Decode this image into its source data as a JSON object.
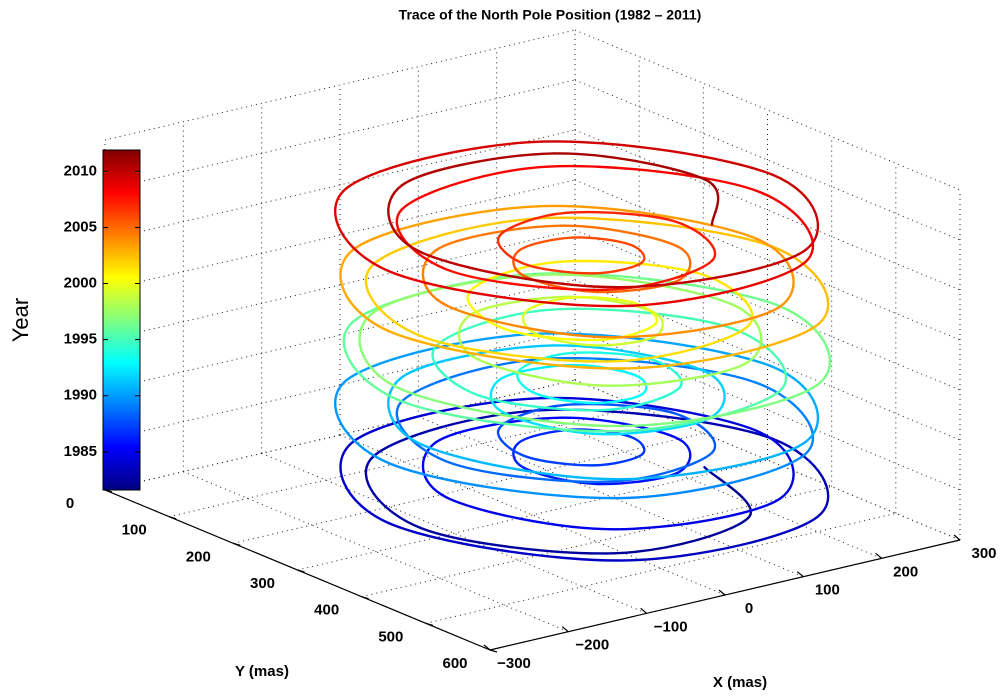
{
  "chart_data": {
    "type": "line3d",
    "title": "Trace of the North Pole Position (1982 – 2011)",
    "xlabel": "X (mas)",
    "ylabel": "Y (mas)",
    "colorbar": {
      "label": "Year",
      "clim": [
        1981.6,
        2011.9
      ],
      "ticks": [
        1985,
        1990,
        1995,
        2000,
        2005,
        2010
      ]
    },
    "colormap": "jet",
    "grid": true,
    "xlim": [
      -300,
      300
    ],
    "xticks": [
      {
        "value": -300,
        "label": "−300"
      },
      {
        "value": -200,
        "label": "−200"
      },
      {
        "value": -100,
        "label": "−100"
      },
      0,
      100,
      200,
      300
    ],
    "ylim": [
      0,
      600
    ],
    "yticks": [
      0,
      100,
      200,
      300,
      400,
      500,
      600
    ],
    "zlim": [
      1980,
      2015
    ],
    "zticks": [
      1980,
      1985,
      1990,
      1995,
      2000,
      2005,
      2010,
      2015
    ],
    "x": [
      195,
      127,
      -56,
      -168,
      -71,
      157,
      283,
      164,
      -85,
      -208,
      -82,
      157,
      262,
      144,
      -56,
      -134,
      -38,
      108,
      159,
      91,
      -4,
      -36,
      6,
      71,
      100,
      71,
      6,
      -36,
      -4,
      91,
      159,
      108,
      -38,
      -134,
      -56,
      144,
      262,
      157,
      -82,
      -208,
      -85,
      164,
      283,
      157,
      -71,
      -168,
      -56,
      127,
      195,
      108,
      -20,
      -62,
      -4,
      78,
      107,
      71,
      10,
      -22,
      6,
      78,
      128,
      91,
      -20,
      -96,
      -38,
      127,
      231,
      144,
      -71,
      -194,
      -82,
      164,
      290,
      164,
      -82,
      -194,
      -71,
      144,
      231,
      127,
      -38,
      -96,
      -20,
      91,
      128,
      78,
      6,
      -22,
      10,
      71,
      107,
      78,
      -4,
      -62,
      -20,
      108,
      195,
      127,
      -56,
      -168,
      -71,
      157,
      283,
      164,
      -85,
      -208,
      -82,
      157,
      262,
      144,
      -56,
      -134,
      -38,
      108,
      159,
      91,
      -4,
      -36,
      6,
      71,
      100,
      71,
      6,
      -36,
      -4,
      91,
      159,
      108,
      -38,
      -134,
      -56,
      144,
      262,
      157,
      -82,
      -208,
      -85,
      164,
      283,
      157,
      -71,
      -168,
      -56,
      127,
      195,
      108
    ],
    "y": [
      330,
      481,
      495,
      330,
      138,
      127,
      330,
      545,
      547,
      330,
      120,
      127,
      330,
      510,
      495,
      330,
      196,
      212,
      330,
      418,
      406,
      330,
      272,
      276,
      330,
      384,
      388,
      330,
      254,
      242,
      330,
      448,
      464,
      330,
      165,
      150,
      330,
      533,
      540,
      330,
      113,
      115,
      330,
      533,
      522,
      330,
      165,
      179,
      330,
      448,
      433,
      330,
      254,
      264,
      330,
      384,
      382,
      330,
      272,
      264,
      330,
      418,
      433,
      330,
      196,
      179,
      330,
      510,
      522,
      330,
      120,
      115,
      330,
      545,
      540,
      330,
      138,
      150,
      330,
      481,
      464,
      330,
      227,
      242,
      330,
      396,
      388,
      330,
      278,
      276,
      330,
      396,
      406,
      330,
      227,
      212,
      330,
      481,
      495,
      330,
      138,
      127,
      330,
      545,
      547,
      330,
      120,
      127,
      330,
      510,
      495,
      330,
      196,
      212,
      330,
      418,
      406,
      330,
      272,
      276,
      330,
      384,
      388,
      330,
      254,
      242,
      330,
      448,
      464,
      330,
      165,
      150,
      330,
      533,
      540,
      330,
      113,
      115,
      330,
      533,
      522,
      330,
      165,
      179,
      330,
      448
    ],
    "z": [
      1982,
      1982.2,
      1982.4,
      1982.6,
      1982.8,
      1983,
      1983.2,
      1983.4,
      1983.6,
      1983.8,
      1984,
      1984.2,
      1984.4,
      1984.6,
      1984.8,
      1985,
      1985.2,
      1985.4,
      1985.6,
      1985.8,
      1986,
      1986.2,
      1986.4,
      1986.6,
      1986.8,
      1987,
      1987.2,
      1987.4,
      1987.6,
      1987.8,
      1988,
      1988.2,
      1988.4,
      1988.6,
      1988.8,
      1989,
      1989.2,
      1989.4,
      1989.6,
      1989.8,
      1990,
      1990.2,
      1990.4,
      1990.6,
      1990.8,
      1991,
      1991.2,
      1991.4,
      1991.6,
      1991.8,
      1992,
      1992.2,
      1992.4,
      1992.6,
      1992.8,
      1993,
      1993.2,
      1993.4,
      1993.6,
      1993.8,
      1994,
      1994.2,
      1994.4,
      1994.6,
      1994.8,
      1995,
      1995.2,
      1995.4,
      1995.6,
      1995.8,
      1996,
      1996.2,
      1996.4,
      1996.6,
      1996.8,
      1997,
      1997.2,
      1997.4,
      1997.6,
      1997.8,
      1998,
      1998.2,
      1998.4,
      1998.6,
      1998.8,
      1999,
      1999.2,
      1999.4,
      1999.6,
      1999.8,
      2000,
      2000.2,
      2000.4,
      2000.6,
      2000.8,
      2001,
      2001.2,
      2001.4,
      2001.6,
      2001.8,
      2002,
      2002.2,
      2002.4,
      2002.6,
      2002.8,
      2003,
      2003.2,
      2003.4,
      2003.6,
      2003.8,
      2004,
      2004.2,
      2004.4,
      2004.6,
      2004.8,
      2005,
      2005.2,
      2005.4,
      2005.6,
      2005.8,
      2006,
      2006.2,
      2006.4,
      2006.6,
      2006.8,
      2007,
      2007.2,
      2007.4,
      2007.6,
      2007.8,
      2008,
      2008.2,
      2008.4,
      2008.6,
      2008.8,
      2009,
      2009.2,
      2009.4,
      2009.6,
      2009.8,
      2010,
      2010.2,
      2010.4,
      2010.6,
      2010.8,
      2011
    ]
  }
}
